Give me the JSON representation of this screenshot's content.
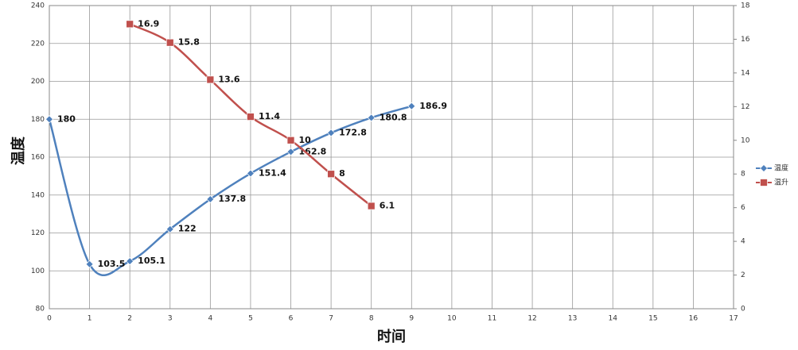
{
  "chart_data": {
    "type": "line",
    "x_label": "时间",
    "y_label": "温度",
    "xlim": [
      0,
      17
    ],
    "xticks": [
      0,
      1,
      2,
      3,
      4,
      5,
      6,
      7,
      8,
      9,
      10,
      11,
      12,
      13,
      14,
      15,
      16,
      17
    ],
    "ylim": [
      80,
      240
    ],
    "yticks": [
      80,
      100,
      120,
      140,
      160,
      180,
      200,
      220,
      240
    ],
    "y2lim": [
      0,
      18
    ],
    "y2ticks": [
      0,
      2,
      4,
      6,
      8,
      10,
      12,
      14,
      16,
      18
    ],
    "grid": true,
    "legend": "right",
    "smooth": true,
    "series": [
      {
        "name": "温度",
        "color": "#4f81bd",
        "marker": "diamond",
        "x": [
          0,
          1,
          2,
          3,
          4,
          5,
          6,
          7,
          8,
          9
        ],
        "values": [
          180,
          103.5,
          105.1,
          122,
          137.8,
          151.4,
          162.8,
          172.8,
          180.8,
          186.9
        ]
      },
      {
        "name": "温升",
        "color": "#c0504d",
        "marker": "square",
        "axis": "y2",
        "x": [
          2,
          3,
          4,
          5,
          6,
          7,
          8
        ],
        "values": [
          16.9,
          15.8,
          13.6,
          11.4,
          10,
          8,
          6.1
        ]
      }
    ]
  }
}
